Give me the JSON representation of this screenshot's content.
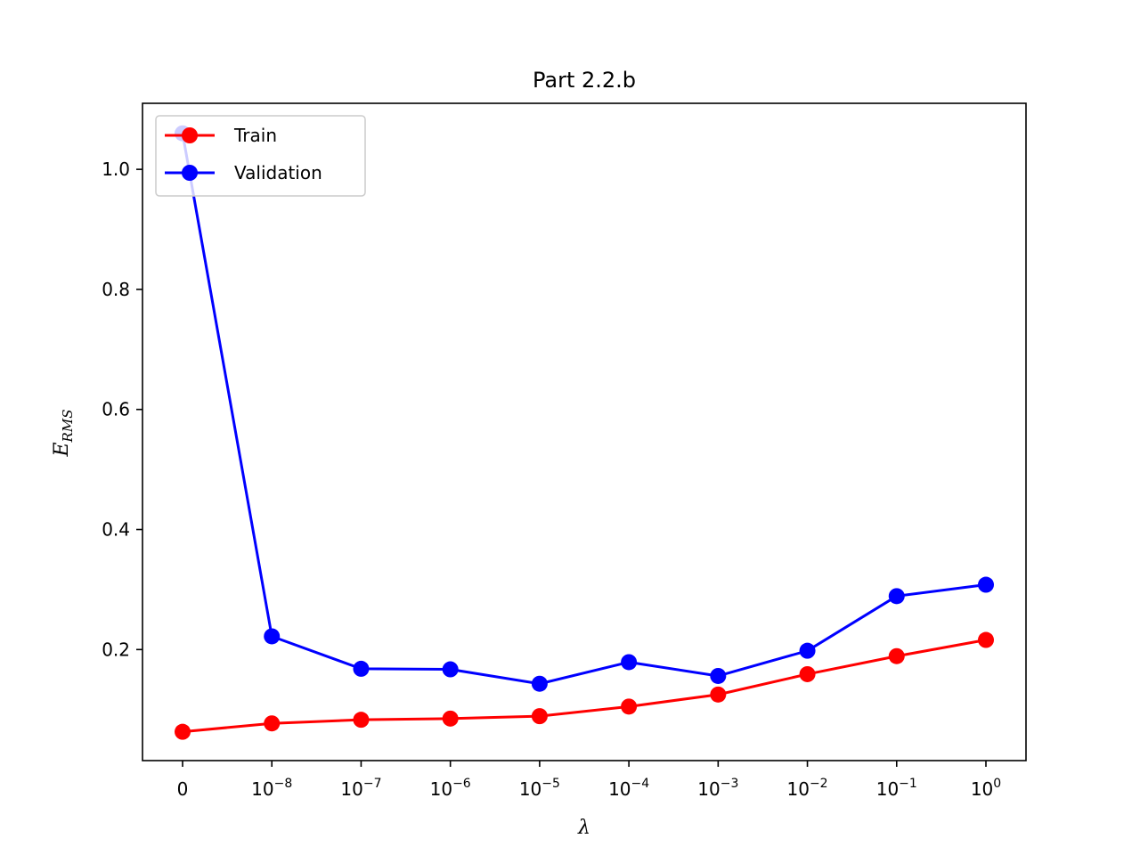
{
  "chart_data": {
    "type": "line",
    "title": "Part 2.2.b",
    "xlabel": "λ",
    "ylabel_main": "E",
    "ylabel_sub": "RMS",
    "categories": [
      {
        "base": "0",
        "exp": ""
      },
      {
        "base": "10",
        "exp": "−8"
      },
      {
        "base": "10",
        "exp": "−7"
      },
      {
        "base": "10",
        "exp": "−6"
      },
      {
        "base": "10",
        "exp": "−5"
      },
      {
        "base": "10",
        "exp": "−4"
      },
      {
        "base": "10",
        "exp": "−3"
      },
      {
        "base": "10",
        "exp": "−2"
      },
      {
        "base": "10",
        "exp": "−1"
      },
      {
        "base": "10",
        "exp": "0"
      }
    ],
    "yticks": [
      "0.2",
      "0.4",
      "0.6",
      "0.8",
      "1.0"
    ],
    "ylim": [
      0.015,
      1.11
    ],
    "grid": false,
    "legend_position": "top-left",
    "series": [
      {
        "name": "Train",
        "color": "#ff0000",
        "values": [
          0.063,
          0.077,
          0.083,
          0.085,
          0.089,
          0.105,
          0.125,
          0.159,
          0.189,
          0.216
        ]
      },
      {
        "name": "Validation",
        "color": "#0000ff",
        "values": [
          1.06,
          0.222,
          0.168,
          0.167,
          0.143,
          0.179,
          0.156,
          0.198,
          0.289,
          0.308
        ]
      }
    ]
  }
}
